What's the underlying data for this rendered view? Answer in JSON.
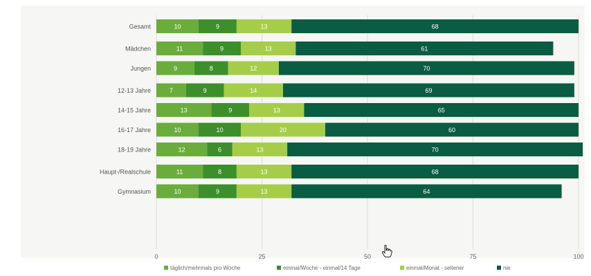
{
  "chart_data": {
    "type": "bar",
    "orientation": "horizontal",
    "stacked": true,
    "categories": [
      "Gesamt",
      "Mädchen",
      "Jungen",
      "12-13 Jahre",
      "14-15 Jahre",
      "16-17 Jahre",
      "18-19 Jahre",
      "Haupt-/Realschule",
      "Gymnasium"
    ],
    "groups": [
      [
        "Gesamt"
      ],
      [
        "Mädchen",
        "Jungen"
      ],
      [
        "12-13 Jahre",
        "14-15 Jahre",
        "16-17 Jahre",
        "18-19 Jahre"
      ],
      [
        "Haupt-/Realschule",
        "Gymnasium"
      ]
    ],
    "series": [
      {
        "name": "täglich/mehrmals pro Woche",
        "color": "#6aad3c",
        "values": [
          10,
          11,
          9,
          7,
          13,
          10,
          12,
          11,
          10
        ]
      },
      {
        "name": "einmal/Woche - einmal/14 Tage",
        "color": "#3d8f2c",
        "values": [
          9,
          9,
          8,
          9,
          9,
          10,
          6,
          8,
          9
        ]
      },
      {
        "name": "einmal/Monat - seltener",
        "color": "#a6cd4a",
        "values": [
          13,
          13,
          12,
          14,
          13,
          20,
          13,
          13,
          13
        ]
      },
      {
        "name": "nie",
        "color": "#0a5c42",
        "values": [
          68,
          61,
          70,
          69,
          65,
          60,
          70,
          68,
          64
        ]
      }
    ],
    "xlim": [
      0,
      100
    ],
    "xticks": [
      0,
      25,
      50,
      75,
      100
    ],
    "grid": true,
    "legend_position": "bottom",
    "title": "",
    "xlabel": "",
    "ylabel": ""
  },
  "icons": {
    "cursor": "hand-pointer-icon"
  }
}
